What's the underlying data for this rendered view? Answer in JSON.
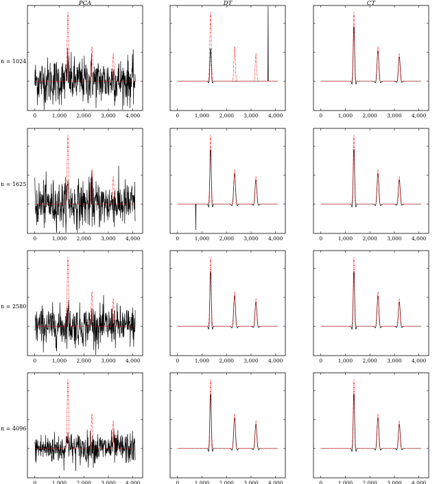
{
  "columns": [
    "PCA",
    "DT",
    "CT"
  ],
  "rows": [
    "n = 1024",
    "n = 1625",
    "n = 2580",
    "n = 4096"
  ],
  "colors": {
    "reference": "#ff0000",
    "estimate": "#000000",
    "frame": "#000000"
  },
  "chart_data": {
    "type": "line",
    "layout": "grid 4 rows x 3 columns",
    "series_styles": {
      "reference": "red dash-dot",
      "estimate": "black solid"
    },
    "xlim": [
      -300,
      4400
    ],
    "xticks": [
      0,
      1000,
      2000,
      3000,
      4000
    ],
    "xtick_labels": [
      "0",
      "1,000",
      "2,000",
      "3,000",
      "4,000"
    ],
    "reference_signal": {
      "description_units": "x = sample index",
      "peaks": [
        {
          "center": 1350,
          "height": 1.0
        },
        {
          "center": 2330,
          "height": 0.5
        },
        {
          "center": 3200,
          "height": 0.4
        }
      ]
    },
    "panels": [
      {
        "row": "n = 1024",
        "column": "PCA",
        "estimate": "noise",
        "noise_level": 0.45
      },
      {
        "row": "n = 1024",
        "column": "DT",
        "estimate": "partial",
        "spike_at": 3700
      },
      {
        "row": "n = 1024",
        "column": "CT",
        "estimate": "close"
      },
      {
        "row": "n = 1625",
        "column": "PCA",
        "estimate": "noise",
        "noise_level": 0.45
      },
      {
        "row": "n = 1625",
        "column": "DT",
        "estimate": "close",
        "spike_at": 750
      },
      {
        "row": "n = 1625",
        "column": "CT",
        "estimate": "close"
      },
      {
        "row": "n = 2580",
        "column": "PCA",
        "estimate": "noise",
        "noise_level": 0.38
      },
      {
        "row": "n = 2580",
        "column": "DT",
        "estimate": "close"
      },
      {
        "row": "n = 2580",
        "column": "CT",
        "estimate": "close"
      },
      {
        "row": "n = 4096",
        "column": "PCA",
        "estimate": "noise",
        "noise_level": 0.3
      },
      {
        "row": "n = 4096",
        "column": "DT",
        "estimate": "close"
      },
      {
        "row": "n = 4096",
        "column": "CT",
        "estimate": "close"
      }
    ]
  }
}
